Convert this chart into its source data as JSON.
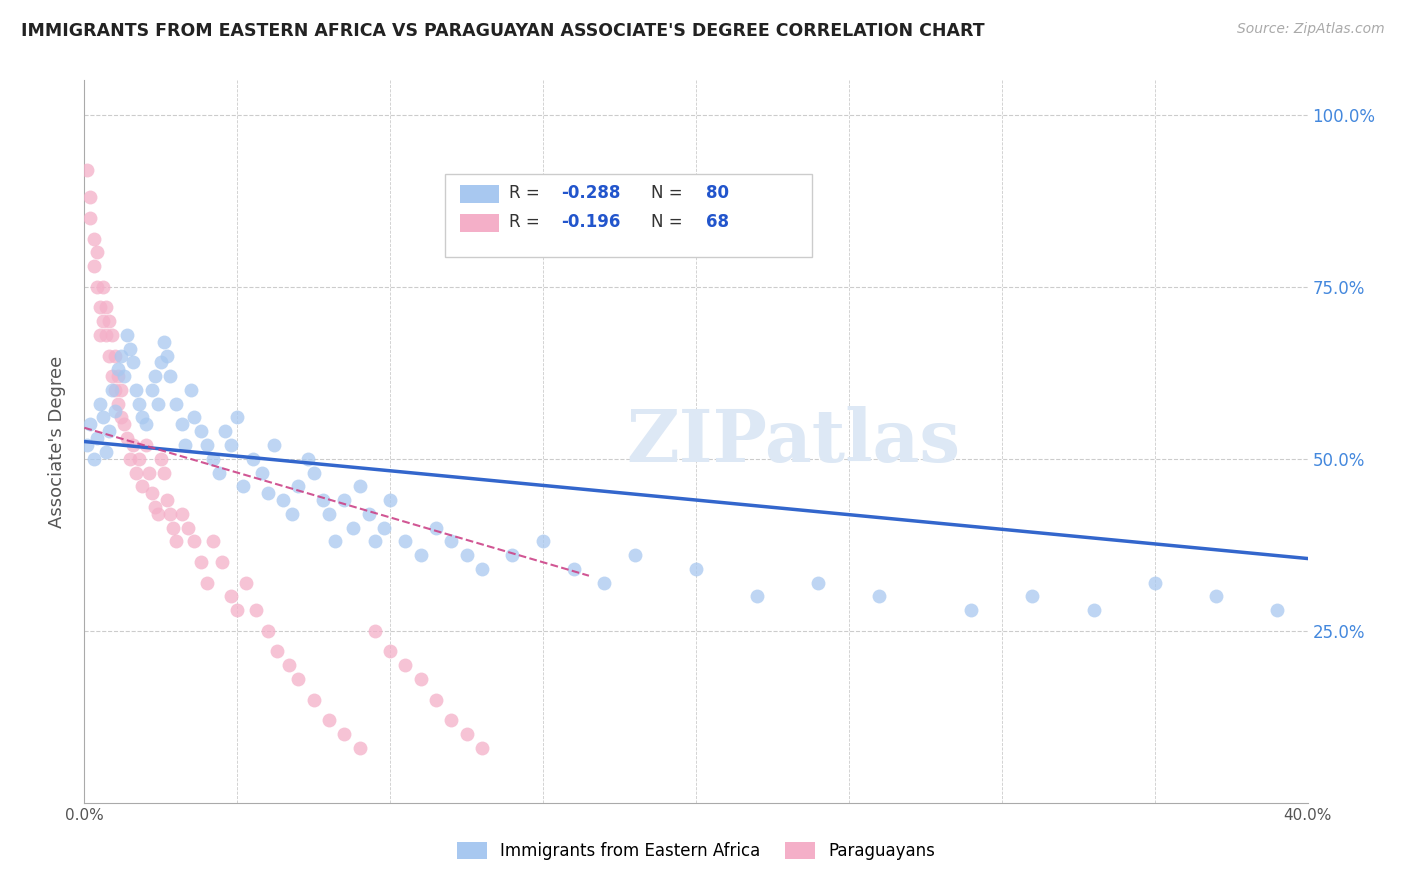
{
  "title": "IMMIGRANTS FROM EASTERN AFRICA VS PARAGUAYAN ASSOCIATE'S DEGREE CORRELATION CHART",
  "source": "Source: ZipAtlas.com",
  "ylabel": "Associate's Degree",
  "ytick_labels": [
    "100.0%",
    "75.0%",
    "50.0%",
    "25.0%"
  ],
  "ytick_positions": [
    1.0,
    0.75,
    0.5,
    0.25
  ],
  "xlim": [
    0.0,
    0.4
  ],
  "ylim": [
    0.0,
    1.05
  ],
  "blue_R": -0.288,
  "blue_N": 80,
  "pink_R": -0.196,
  "pink_N": 68,
  "blue_color": "#a8c8f0",
  "pink_color": "#f4afc8",
  "blue_line_color": "#3366cc",
  "pink_line_color": "#cc4488",
  "watermark": "ZIPatlas",
  "legend_label_blue": "Immigrants from Eastern Africa",
  "legend_label_pink": "Paraguayans",
  "blue_scatter_x": [
    0.001,
    0.002,
    0.003,
    0.004,
    0.005,
    0.006,
    0.007,
    0.008,
    0.009,
    0.01,
    0.011,
    0.012,
    0.013,
    0.014,
    0.015,
    0.016,
    0.017,
    0.018,
    0.019,
    0.02,
    0.022,
    0.023,
    0.024,
    0.025,
    0.026,
    0.027,
    0.028,
    0.03,
    0.032,
    0.033,
    0.035,
    0.036,
    0.038,
    0.04,
    0.042,
    0.044,
    0.046,
    0.048,
    0.05,
    0.052,
    0.055,
    0.058,
    0.06,
    0.062,
    0.065,
    0.068,
    0.07,
    0.073,
    0.075,
    0.078,
    0.08,
    0.082,
    0.085,
    0.088,
    0.09,
    0.093,
    0.095,
    0.098,
    0.1,
    0.105,
    0.11,
    0.115,
    0.12,
    0.125,
    0.13,
    0.14,
    0.15,
    0.16,
    0.17,
    0.18,
    0.2,
    0.22,
    0.24,
    0.26,
    0.29,
    0.31,
    0.33,
    0.35,
    0.37,
    0.39
  ],
  "blue_scatter_y": [
    0.52,
    0.55,
    0.5,
    0.53,
    0.58,
    0.56,
    0.51,
    0.54,
    0.6,
    0.57,
    0.63,
    0.65,
    0.62,
    0.68,
    0.66,
    0.64,
    0.6,
    0.58,
    0.56,
    0.55,
    0.6,
    0.62,
    0.58,
    0.64,
    0.67,
    0.65,
    0.62,
    0.58,
    0.55,
    0.52,
    0.6,
    0.56,
    0.54,
    0.52,
    0.5,
    0.48,
    0.54,
    0.52,
    0.56,
    0.46,
    0.5,
    0.48,
    0.45,
    0.52,
    0.44,
    0.42,
    0.46,
    0.5,
    0.48,
    0.44,
    0.42,
    0.38,
    0.44,
    0.4,
    0.46,
    0.42,
    0.38,
    0.4,
    0.44,
    0.38,
    0.36,
    0.4,
    0.38,
    0.36,
    0.34,
    0.36,
    0.38,
    0.34,
    0.32,
    0.36,
    0.34,
    0.3,
    0.32,
    0.3,
    0.28,
    0.3,
    0.28,
    0.32,
    0.3,
    0.28
  ],
  "pink_scatter_x": [
    0.001,
    0.002,
    0.002,
    0.003,
    0.003,
    0.004,
    0.004,
    0.005,
    0.005,
    0.006,
    0.006,
    0.007,
    0.007,
    0.008,
    0.008,
    0.009,
    0.009,
    0.01,
    0.01,
    0.011,
    0.011,
    0.012,
    0.012,
    0.013,
    0.014,
    0.015,
    0.016,
    0.017,
    0.018,
    0.019,
    0.02,
    0.021,
    0.022,
    0.023,
    0.024,
    0.025,
    0.026,
    0.027,
    0.028,
    0.029,
    0.03,
    0.032,
    0.034,
    0.036,
    0.038,
    0.04,
    0.042,
    0.045,
    0.048,
    0.05,
    0.053,
    0.056,
    0.06,
    0.063,
    0.067,
    0.07,
    0.075,
    0.08,
    0.085,
    0.09,
    0.095,
    0.1,
    0.105,
    0.11,
    0.115,
    0.12,
    0.125,
    0.13
  ],
  "pink_scatter_y": [
    0.92,
    0.85,
    0.88,
    0.78,
    0.82,
    0.8,
    0.75,
    0.72,
    0.68,
    0.75,
    0.7,
    0.72,
    0.68,
    0.65,
    0.7,
    0.62,
    0.68,
    0.65,
    0.6,
    0.58,
    0.62,
    0.56,
    0.6,
    0.55,
    0.53,
    0.5,
    0.52,
    0.48,
    0.5,
    0.46,
    0.52,
    0.48,
    0.45,
    0.43,
    0.42,
    0.5,
    0.48,
    0.44,
    0.42,
    0.4,
    0.38,
    0.42,
    0.4,
    0.38,
    0.35,
    0.32,
    0.38,
    0.35,
    0.3,
    0.28,
    0.32,
    0.28,
    0.25,
    0.22,
    0.2,
    0.18,
    0.15,
    0.12,
    0.1,
    0.08,
    0.25,
    0.22,
    0.2,
    0.18,
    0.15,
    0.12,
    0.1,
    0.08
  ],
  "blue_line_x": [
    0.0,
    0.4
  ],
  "blue_line_y": [
    0.525,
    0.355
  ],
  "pink_line_x": [
    0.0,
    0.165
  ],
  "pink_line_y": [
    0.545,
    0.33
  ]
}
